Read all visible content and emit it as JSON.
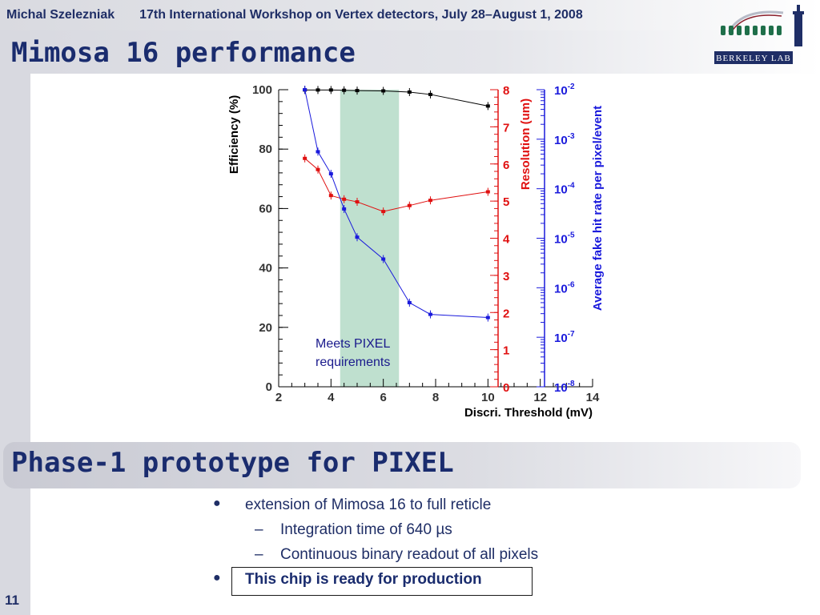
{
  "header": {
    "author": "Michal Szelezniak",
    "event": "17th International Workshop on Vertex detectors, July 28–August 1, 2008"
  },
  "logo": {
    "text": "BERKELEY LAB"
  },
  "slide": {
    "title": "Mimosa 16 performance",
    "section_title": "Phase-1 prototype for PIXEL",
    "page_number": "11"
  },
  "bullets": [
    {
      "level": 1,
      "text": "extension of Mimosa 16 to full reticle"
    },
    {
      "level": 2,
      "text": "Integration time of 640 µs"
    },
    {
      "level": 2,
      "text": "Continuous binary readout of all pixels"
    },
    {
      "level": 1,
      "text": "This chip is ready for production",
      "bold": true,
      "boxed": true
    }
  ],
  "chart_data": {
    "type": "line",
    "xlabel": "Discri. Threshold (mV)",
    "x_ticks": [
      "2",
      "4",
      "6",
      "8",
      "10",
      "12",
      "14"
    ],
    "xlim": [
      2,
      14
    ],
    "axes": [
      {
        "id": "efficiency",
        "label": "Efficiency (%)",
        "color": "#000000",
        "scale": "linear",
        "lim": [
          0,
          100
        ],
        "ticks": [
          "0",
          "20",
          "40",
          "60",
          "80",
          "100"
        ]
      },
      {
        "id": "resolution",
        "label": "Resolution (um)",
        "color": "#e01010",
        "scale": "linear",
        "lim": [
          0,
          8
        ],
        "ticks": [
          "0",
          "1",
          "2",
          "3",
          "4",
          "5",
          "6",
          "7",
          "8"
        ]
      },
      {
        "id": "fake_rate",
        "label": "Average fake hit rate per pixel/event",
        "color": "#1a1adc",
        "scale": "log",
        "lim": [
          1e-08,
          0.01
        ],
        "ticks": [
          {
            "base": "10",
            "exp": "-8"
          },
          {
            "base": "10",
            "exp": "-7"
          },
          {
            "base": "10",
            "exp": "-6"
          },
          {
            "base": "10",
            "exp": "-5"
          },
          {
            "base": "10",
            "exp": "-4"
          },
          {
            "base": "10",
            "exp": "-3"
          },
          {
            "base": "10",
            "exp": "-2"
          }
        ]
      }
    ],
    "series": [
      {
        "axis": "efficiency",
        "color": "#000000",
        "x": [
          3,
          3.5,
          4,
          4.5,
          5,
          6,
          7,
          7.8,
          10
        ],
        "y": [
          99.9,
          99.9,
          99.9,
          99.8,
          99.7,
          99.6,
          99.2,
          98.4,
          94.5
        ]
      },
      {
        "axis": "resolution",
        "color": "#e01010",
        "x": [
          3,
          3.5,
          4,
          4.5,
          5,
          6,
          7,
          7.8,
          10
        ],
        "y": [
          6.15,
          5.85,
          5.15,
          5.05,
          4.98,
          4.72,
          4.88,
          5.02,
          5.25
        ]
      },
      {
        "axis": "fake_rate",
        "color": "#1a1adc",
        "x": [
          3,
          3.5,
          4,
          4.5,
          5,
          6,
          7,
          7.8,
          10
        ],
        "y": [
          0.01,
          0.00056,
          0.0002,
          3.9e-05,
          1.05e-05,
          3.8e-06,
          5e-07,
          2.9e-07,
          2.5e-07
        ]
      }
    ],
    "band": {
      "x_range": [
        4.35,
        6.6
      ],
      "color": "#bfe0cf"
    },
    "annotation": "Meets PIXEL requirements"
  }
}
